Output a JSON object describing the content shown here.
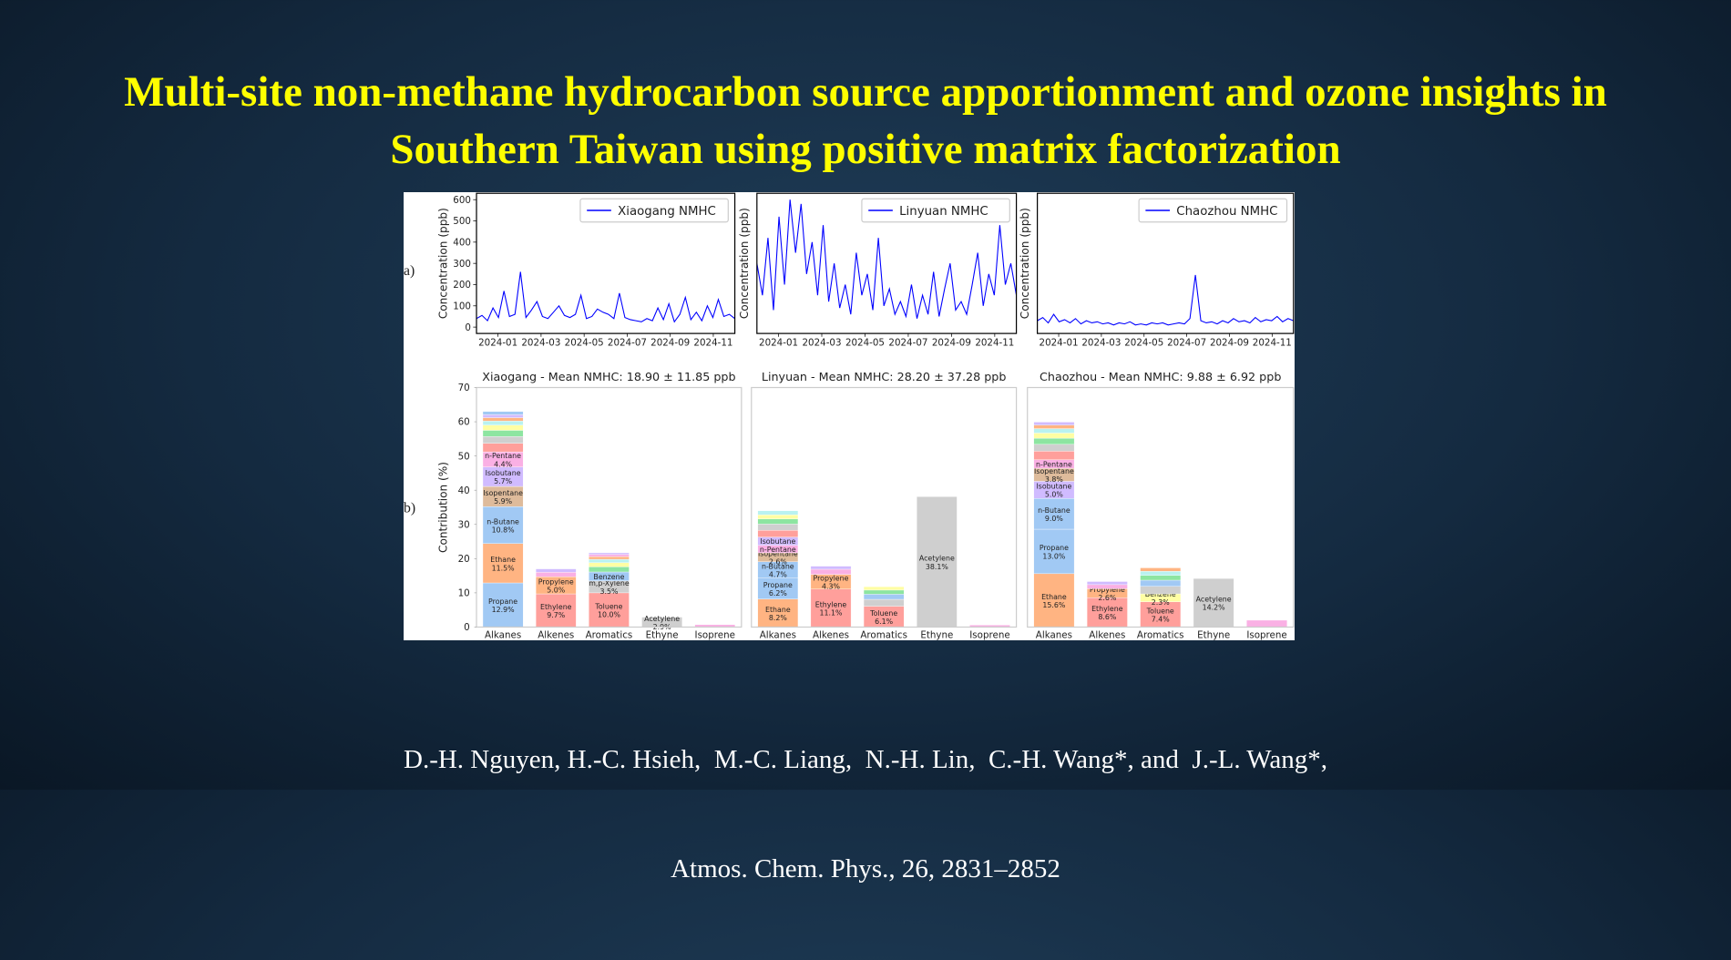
{
  "title": {
    "lines": [
      "Multi-site non-methane hydrocarbon source apportionment and ozone insights in",
      "Southern Taiwan using positive matrix factorization"
    ]
  },
  "figure": {
    "panel_labels": [
      "a)",
      "b)"
    ]
  },
  "chart_data": [
    {
      "type": "line",
      "ylabel": "Concentration (ppb)",
      "xlim": [
        "2023-12",
        "2024-12"
      ],
      "xticks": [
        "2024-01",
        "2024-03",
        "2024-05",
        "2024-07",
        "2024-09",
        "2024-11"
      ],
      "ylim": [
        -30,
        630
      ],
      "yticks": [
        0,
        100,
        200,
        300,
        400,
        500,
        600
      ],
      "legend": "upper right",
      "series": [
        {
          "name": "Xiaogang NMHC",
          "color": "#0000ff",
          "values": [
            40,
            55,
            30,
            90,
            45,
            170,
            50,
            60,
            260,
            45,
            80,
            120,
            50,
            40,
            70,
            100,
            55,
            45,
            60,
            150,
            40,
            50,
            85,
            70,
            60,
            40,
            160,
            45,
            35,
            30,
            25,
            40,
            30,
            90,
            35,
            110,
            25,
            60,
            140,
            35,
            70,
            30,
            100,
            45,
            130,
            50,
            60,
            40
          ]
        }
      ]
    },
    {
      "type": "line",
      "ylabel": "Concentration (ppb)",
      "xlim": [
        "2023-12",
        "2024-12"
      ],
      "xticks": [
        "2024-01",
        "2024-03",
        "2024-05",
        "2024-07",
        "2024-09",
        "2024-11"
      ],
      "ylim": [
        -30,
        630
      ],
      "legend": "upper right",
      "series": [
        {
          "name": "Linyuan NMHC",
          "color": "#0000ff",
          "values": [
            300,
            150,
            420,
            80,
            520,
            200,
            600,
            350,
            580,
            250,
            400,
            150,
            480,
            120,
            300,
            90,
            200,
            60,
            350,
            150,
            250,
            80,
            420,
            100,
            180,
            60,
            120,
            50,
            200,
            40,
            150,
            60,
            260,
            50,
            180,
            300,
            80,
            120,
            60,
            200,
            350,
            100,
            250,
            150,
            480,
            200,
            300,
            150
          ]
        }
      ]
    },
    {
      "type": "line",
      "ylabel": "Concentration (ppb)",
      "xlim": [
        "2023-12",
        "2024-12"
      ],
      "xticks": [
        "2024-01",
        "2024-03",
        "2024-05",
        "2024-07",
        "2024-09",
        "2024-11"
      ],
      "ylim": [
        -30,
        630
      ],
      "legend": "upper right",
      "series": [
        {
          "name": "Chaozhou NMHC",
          "color": "#0000ff",
          "values": [
            30,
            45,
            20,
            60,
            25,
            35,
            20,
            40,
            15,
            30,
            20,
            25,
            15,
            20,
            10,
            20,
            15,
            25,
            10,
            15,
            10,
            20,
            15,
            20,
            10,
            15,
            20,
            15,
            40,
            245,
            30,
            20,
            25,
            15,
            30,
            20,
            40,
            25,
            30,
            20,
            45,
            25,
            35,
            30,
            50,
            25,
            40,
            30
          ]
        }
      ]
    },
    {
      "type": "bar",
      "title": "Xiaogang - Mean NMHC: 18.90 ± 11.85 ppb",
      "ylabel": "Contribution (%)",
      "ylim": [
        0,
        70
      ],
      "yticks": [
        0,
        10,
        20,
        30,
        40,
        50,
        60,
        70
      ],
      "categories": [
        "Alkanes",
        "Alkenes",
        "Aromatics",
        "Ethyne",
        "Isoprene"
      ],
      "stacks": [
        {
          "names": [
            "Propane",
            "Ethane",
            "n-Butane",
            "Isopentane",
            "Isobutane",
            "n-Pentane",
            null,
            null,
            null,
            null,
            null,
            null,
            null,
            null
          ],
          "values": [
            12.9,
            11.5,
            10.8,
            5.9,
            5.7,
            4.4,
            2.5,
            2.0,
            1.8,
            1.5,
            1.2,
            1.0,
            0.9,
            0.9
          ],
          "value_labels": [
            "12.9%",
            "11.5%",
            "10.8%",
            "5.9%",
            "5.7%",
            "4.4%",
            null,
            null,
            null,
            null,
            null,
            null,
            null,
            null
          ],
          "colors": [
            "#a1c9f4",
            "#ffb482",
            "#a1c9f4",
            "#debb9b",
            "#d0bbff",
            "#fab0e4",
            "#ff9f9b",
            "#cfcfcf",
            "#8de5a1",
            "#fffea3",
            "#b9f2f0",
            "#ffb482",
            "#d0bbff",
            "#a1c9f4"
          ]
        },
        {
          "names": [
            "Ethylene",
            "Propylene",
            null,
            null
          ],
          "values": [
            9.7,
            5.0,
            1.3,
            1.0
          ],
          "value_labels": [
            "9.7%",
            "5.0%",
            null,
            null
          ],
          "colors": [
            "#ff9f9b",
            "#ffb482",
            "#fab0e4",
            "#d0bbff"
          ]
        },
        {
          "names": [
            "Toluene",
            "m,p-Xylene",
            "Benzene",
            null,
            null,
            null,
            null,
            null,
            null
          ],
          "values": [
            10.0,
            3.5,
            2.6,
            1.5,
            1.2,
            1.0,
            0.8,
            0.6,
            0.5
          ],
          "value_labels": [
            "10.0%",
            "3.5%",
            null,
            null,
            null,
            null,
            null,
            null,
            null
          ],
          "colors": [
            "#ff9f9b",
            "#cfcfcf",
            "#a1c9f4",
            "#8de5a1",
            "#fffea3",
            "#b9f2f0",
            "#ffb482",
            "#fab0e4",
            "#d0bbff"
          ]
        },
        {
          "names": [
            "Acetylene"
          ],
          "values": [
            2.9
          ],
          "value_labels": [
            "2.9%"
          ],
          "colors": [
            "#cfcfcf"
          ]
        },
        {
          "names": [
            null
          ],
          "values": [
            0.7
          ],
          "value_labels": [
            null
          ],
          "colors": [
            "#fab0e4"
          ]
        }
      ]
    },
    {
      "type": "bar",
      "title": "Linyuan - Mean NMHC: 28.20 ± 37.28 ppb",
      "ylim": [
        0,
        70
      ],
      "categories": [
        "Alkanes",
        "Alkenes",
        "Aromatics",
        "Ethyne",
        "Isoprene"
      ],
      "stacks": [
        {
          "names": [
            "Ethane",
            "Propane",
            "n-Butane",
            "Isopentane",
            "n-Pentane",
            "Isobutane",
            null,
            null,
            null,
            null,
            null
          ],
          "values": [
            8.2,
            6.2,
            4.7,
            2.6,
            2.2,
            2.4,
            2.0,
            1.8,
            1.5,
            1.2,
            1.2
          ],
          "value_labels": [
            "8.2%",
            "6.2%",
            "4.7%",
            "2.6%",
            null,
            null,
            null,
            null,
            null,
            null,
            null
          ],
          "colors": [
            "#ffb482",
            "#a1c9f4",
            "#a1c9f4",
            "#debb9b",
            "#fab0e4",
            "#d0bbff",
            "#ff9f9b",
            "#cfcfcf",
            "#8de5a1",
            "#fffea3",
            "#b9f2f0"
          ]
        },
        {
          "names": [
            "Ethylene",
            "Propylene",
            null,
            null
          ],
          "values": [
            11.1,
            4.3,
            1.5,
            0.9
          ],
          "value_labels": [
            "11.1%",
            "4.3%",
            null,
            null
          ],
          "colors": [
            "#ff9f9b",
            "#ffb482",
            "#fab0e4",
            "#d0bbff"
          ]
        },
        {
          "names": [
            "Toluene",
            null,
            null,
            null,
            null
          ],
          "values": [
            6.1,
            2.0,
            1.5,
            1.2,
            1.0
          ],
          "value_labels": [
            "6.1%",
            null,
            null,
            null,
            null
          ],
          "colors": [
            "#ff9f9b",
            "#cfcfcf",
            "#a1c9f4",
            "#8de5a1",
            "#fffea3"
          ]
        },
        {
          "names": [
            "Acetylene"
          ],
          "values": [
            38.1
          ],
          "value_labels": [
            "38.1%"
          ],
          "colors": [
            "#cfcfcf"
          ]
        },
        {
          "names": [
            null
          ],
          "values": [
            0.6
          ],
          "value_labels": [
            null
          ],
          "colors": [
            "#fab0e4"
          ]
        }
      ]
    },
    {
      "type": "bar",
      "title": "Chaozhou - Mean NMHC: 9.88 ± 6.92 ppb",
      "ylim": [
        0,
        70
      ],
      "categories": [
        "Alkanes",
        "Alkenes",
        "Aromatics",
        "Ethyne",
        "Isoprene"
      ],
      "stacks": [
        {
          "names": [
            "Ethane",
            "Propane",
            "n-Butane",
            "Isobutane",
            "Isopentane",
            "n-Pentane",
            null,
            null,
            null,
            null,
            null,
            null,
            null
          ],
          "values": [
            15.6,
            13.0,
            9.0,
            5.0,
            3.8,
            2.5,
            2.5,
            2.0,
            1.8,
            1.5,
            1.3,
            1.0,
            0.9
          ],
          "value_labels": [
            "15.6%",
            "13.0%",
            "9.0%",
            "5.0%",
            "3.8%",
            null,
            null,
            null,
            null,
            null,
            null,
            null,
            null
          ],
          "colors": [
            "#ffb482",
            "#a1c9f4",
            "#a1c9f4",
            "#d0bbff",
            "#debb9b",
            "#fab0e4",
            "#ff9f9b",
            "#cfcfcf",
            "#8de5a1",
            "#fffea3",
            "#b9f2f0",
            "#ffb482",
            "#d0bbff"
          ]
        },
        {
          "names": [
            "Ethylene",
            "Propylene",
            null,
            null
          ],
          "values": [
            8.6,
            2.6,
            1.2,
            0.9
          ],
          "value_labels": [
            "8.6%",
            "2.6%",
            null,
            null
          ],
          "colors": [
            "#ff9f9b",
            "#ffb482",
            "#fab0e4",
            "#d0bbff"
          ]
        },
        {
          "names": [
            "Toluene",
            "Benzene",
            null,
            null,
            null,
            null,
            null
          ],
          "values": [
            7.4,
            2.3,
            2.2,
            1.8,
            1.4,
            1.2,
            1.0
          ],
          "value_labels": [
            "7.4%",
            "2.3%",
            null,
            null,
            null,
            null,
            null
          ],
          "colors": [
            "#ff9f9b",
            "#fffea3",
            "#cfcfcf",
            "#a1c9f4",
            "#8de5a1",
            "#b9f2f0",
            "#ffb482"
          ]
        },
        {
          "names": [
            "Acetylene"
          ],
          "values": [
            14.2
          ],
          "value_labels": [
            "14.2%"
          ],
          "colors": [
            "#cfcfcf"
          ]
        },
        {
          "names": [
            null
          ],
          "values": [
            2.0
          ],
          "value_labels": [
            null
          ],
          "colors": [
            "#fab0e4"
          ]
        }
      ]
    }
  ],
  "citation": {
    "authors": "D.-H. Nguyen, H.-C. Hsieh,  M.-C. Liang,  N.-H. Lin,  C.-H. Wang*, and  J.-L. Wang*,",
    "journal": "Atmos. Chem. Phys., 26, 2831–2852"
  }
}
